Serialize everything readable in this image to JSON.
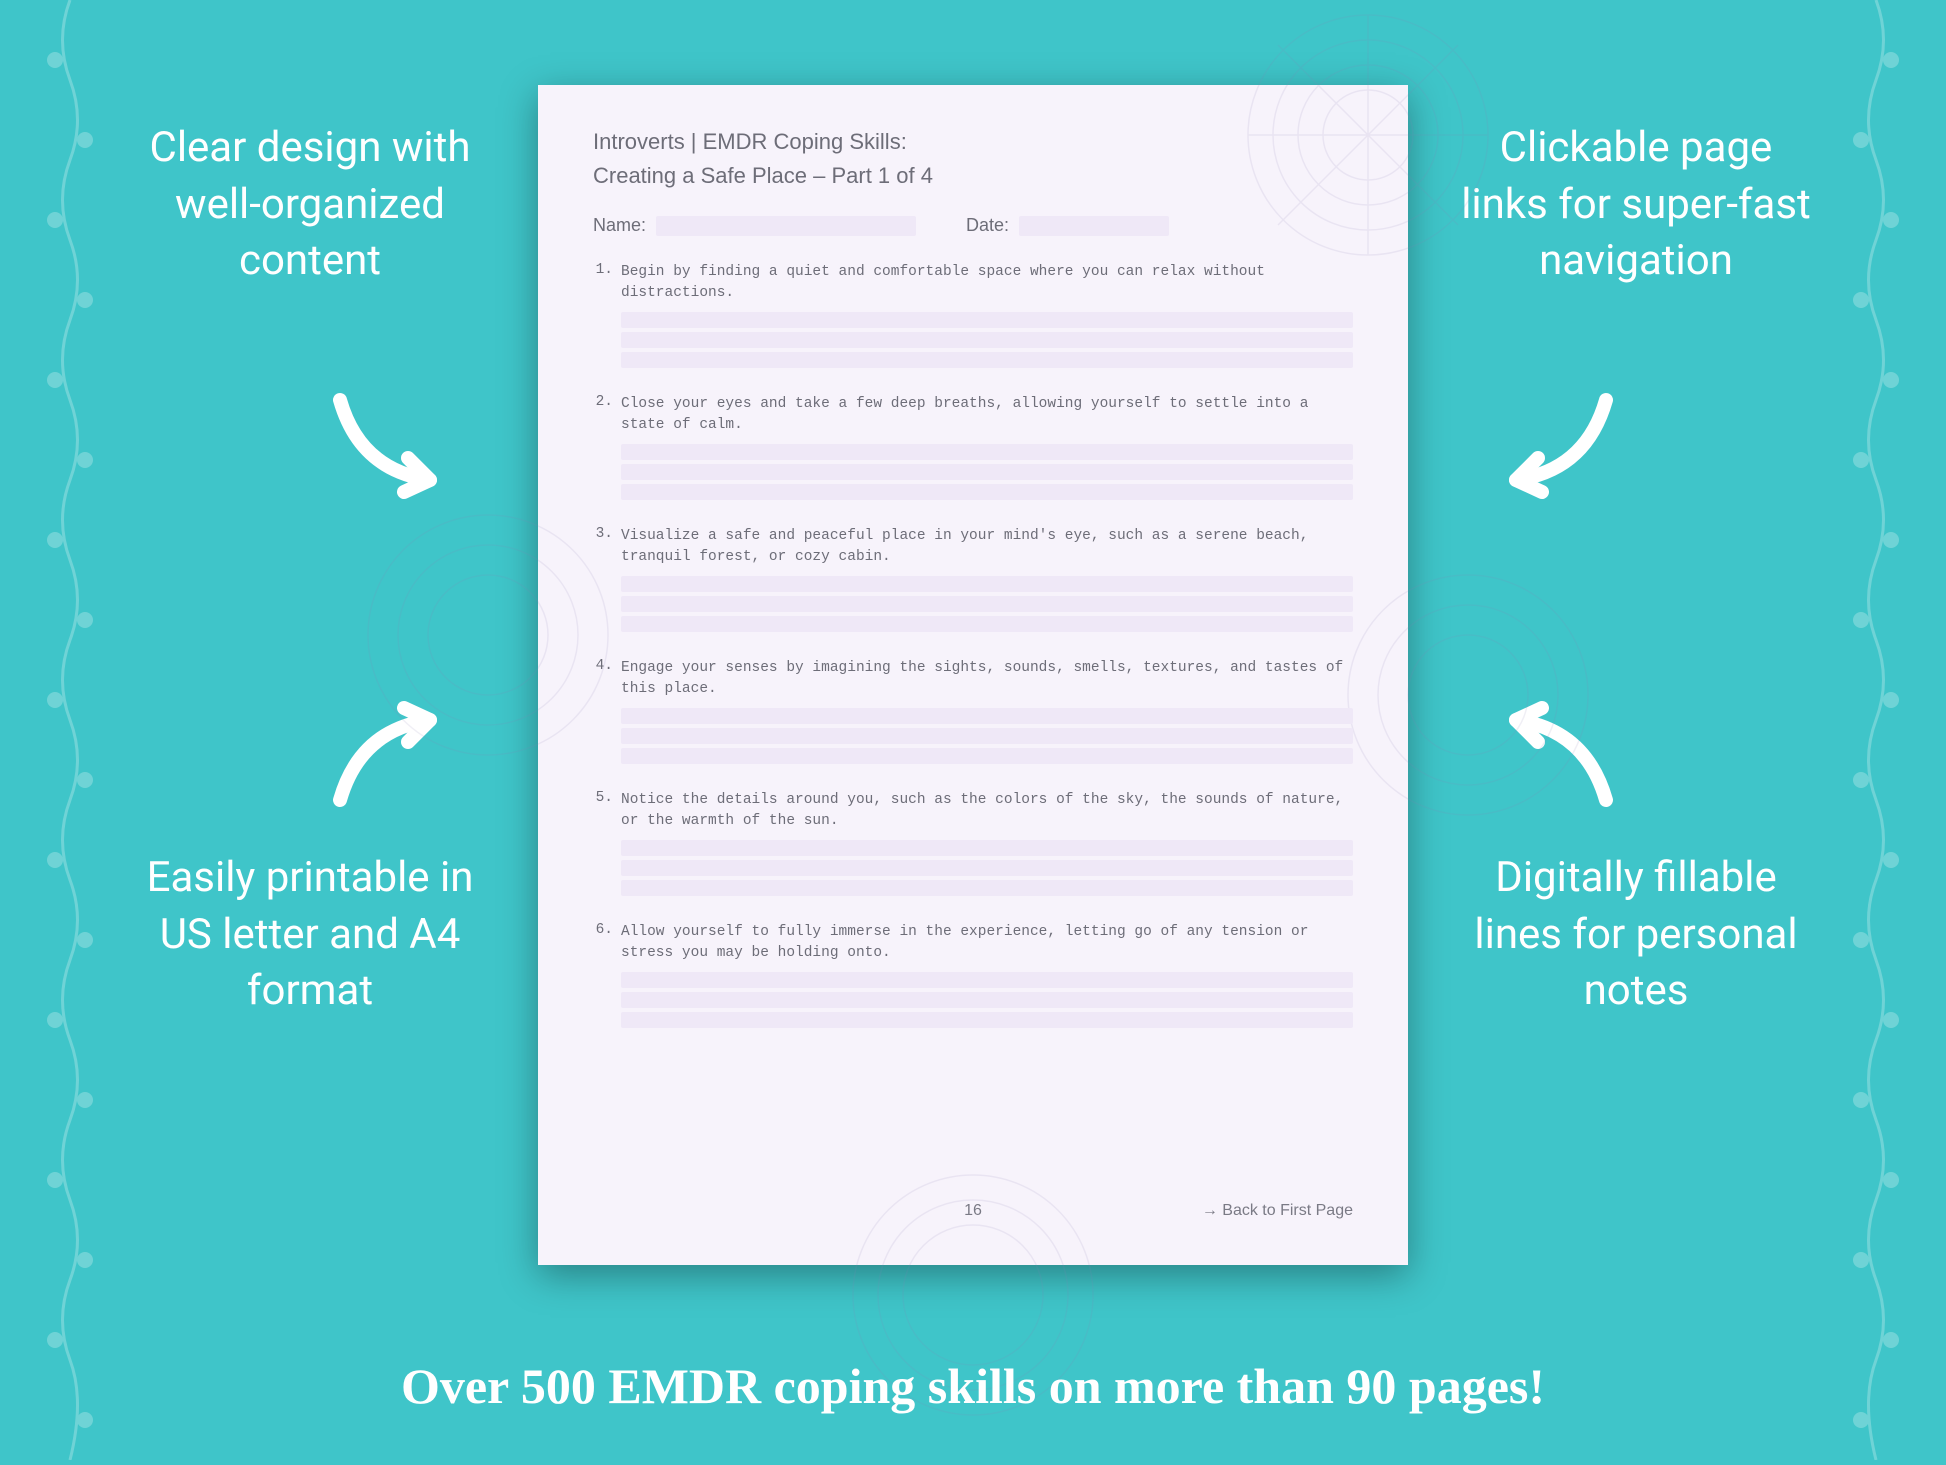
{
  "colors": {
    "background": "#3fc5c9",
    "callout_text": "#ffffff",
    "page_bg": "#f7f3fb",
    "page_text": "#6d6d78",
    "field_bg": "#efe8f7",
    "shadow": "rgba(0,0,0,0.35)"
  },
  "typography": {
    "callout_fontsize": 42,
    "banner_fontsize": 50,
    "page_header_fontsize": 22,
    "step_fontsize": 14.5,
    "footer_fontsize": 16
  },
  "callouts": {
    "top_left": "Clear design with well-organized content",
    "top_right": "Clickable page links for super-fast navigation",
    "bottom_left": "Easily printable in US letter and A4 format",
    "bottom_right": "Digitally fillable lines for personal notes"
  },
  "banner": "Over 500 EMDR coping skills on more than 90 pages!",
  "page": {
    "header_line1": "Introverts | EMDR Coping Skills:",
    "header_line2": "Creating a Safe Place – Part 1 of 4",
    "name_label": "Name:",
    "date_label": "Date:",
    "steps": [
      "Begin by finding a quiet and comfortable space where you can relax without distractions.",
      "Close your eyes and take a few deep breaths, allowing yourself to settle into a state of calm.",
      "Visualize a safe and peaceful place in your mind's eye, such as a serene beach, tranquil forest, or cozy cabin.",
      "Engage your senses by imagining the sights, sounds, smells, textures, and tastes of this place.",
      "Notice the details around you, such as the colors of the sky, the sounds of nature, or the warmth of the sun.",
      "Allow yourself to fully immerse in the experience, letting go of any tension or stress you may be holding onto."
    ],
    "page_number": "16",
    "back_link": "→ Back to First Page"
  }
}
